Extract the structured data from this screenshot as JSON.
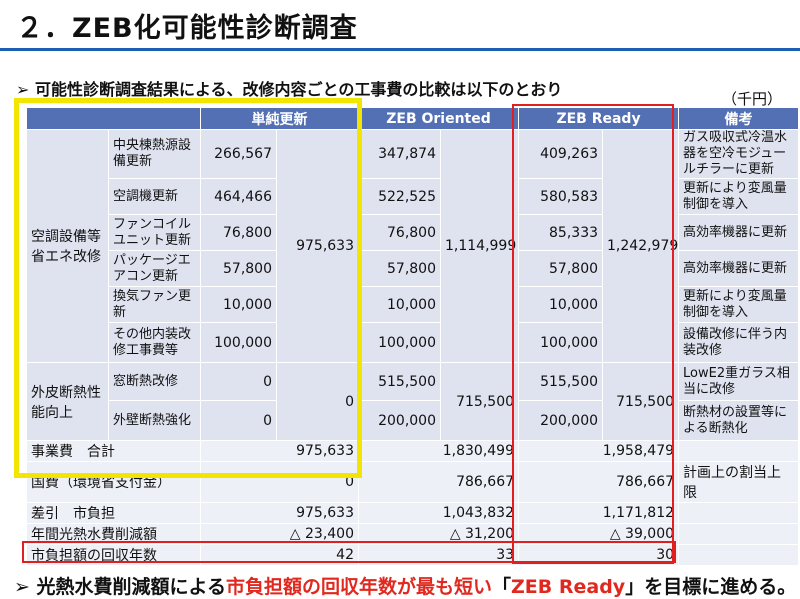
{
  "slide": {
    "title": "２．ZEB化可能性診断調査",
    "subtitle": "➢ 可能性診断調査結果による、改修内容ごとの工事費の比較は以下のとおり",
    "unit": "（千円）"
  },
  "table": {
    "headers": [
      "単純更新",
      "ZEB Oriented",
      "ZEB Ready",
      "備考"
    ],
    "category_hvac": "空調設備等省エネ改修",
    "category_envelope": "外皮断熱性能向上",
    "rows": [
      {
        "item": "中央棟熱源設備更新",
        "v1": "266,567",
        "v2": "347,874",
        "v3": "409,263",
        "note": "ガス吸収式冷温水器を空冷モジュールチラーに更新"
      },
      {
        "item": "空調機更新",
        "v1": "464,466",
        "v2": "522,525",
        "v3": "580,583",
        "note": "更新により変風量制御を導入"
      },
      {
        "item": "ファンコイルユニット更新",
        "v1": "76,800",
        "v2": "76,800",
        "v3": "85,333",
        "note": "高効率機器に更新"
      },
      {
        "item": "パッケージエアコン更新",
        "v1": "57,800",
        "v2": "57,800",
        "v3": "57,800",
        "note": "高効率機器に更新"
      },
      {
        "item": "換気ファン更新",
        "v1": "10,000",
        "v2": "10,000",
        "v3": "10,000",
        "note": "更新により変風量制御を導入"
      },
      {
        "item": "その他内装改修工事費等",
        "v1": "100,000",
        "v2": "100,000",
        "v3": "100,000",
        "note": "設備改修に伴う内装改修"
      },
      {
        "item": "窓断熱改修",
        "v1": "0",
        "v2": "515,500",
        "v3": "515,500",
        "note": "LowE2重ガラス相当に改修"
      },
      {
        "item": "外壁断熱強化",
        "v1": "0",
        "v2": "200,000",
        "v3": "200,000",
        "note": "断熱材の設置等による断熱化"
      }
    ],
    "hvac_totals": [
      "975,633",
      "1,114,999",
      "1,242,979"
    ],
    "envelope_totals": [
      "0",
      "715,500",
      "715,500"
    ],
    "summary": [
      {
        "label": "事業費　合計",
        "v1": "975,633",
        "v2": "1,830,499",
        "v3": "1,958,479",
        "note": ""
      },
      {
        "label": "国費（環境省支付金）",
        "v1": "0",
        "v2": "786,667",
        "v3": "786,667",
        "note": "計画上の割当上限"
      },
      {
        "label": "差引　市負担",
        "v1": "975,633",
        "v2": "1,043,832",
        "v3": "1,171,812",
        "note": ""
      },
      {
        "label": "年間光熱水費削減額",
        "v1": "△ 23,400",
        "v2": "△ 31,200",
        "v3": "△ 39,000",
        "note": ""
      },
      {
        "label": "市負担額の回収年数",
        "v1": "42",
        "v2": "33",
        "v3": "30",
        "note": ""
      }
    ]
  },
  "conclusion": {
    "part1": "➢ 光熱水費削減額による",
    "part2": "市負担額の回収年数が最も短い",
    "part3": "「",
    "part4": "ZEB Ready",
    "part5": "」を目標",
    "part6": "に進める。"
  },
  "colors": {
    "header_blue": "#5470b4",
    "cell_light": "#dfe3f0",
    "highlight_yellow": "#f2e600",
    "highlight_red": "#e02020",
    "title_rule": "#1a5fb4"
  }
}
